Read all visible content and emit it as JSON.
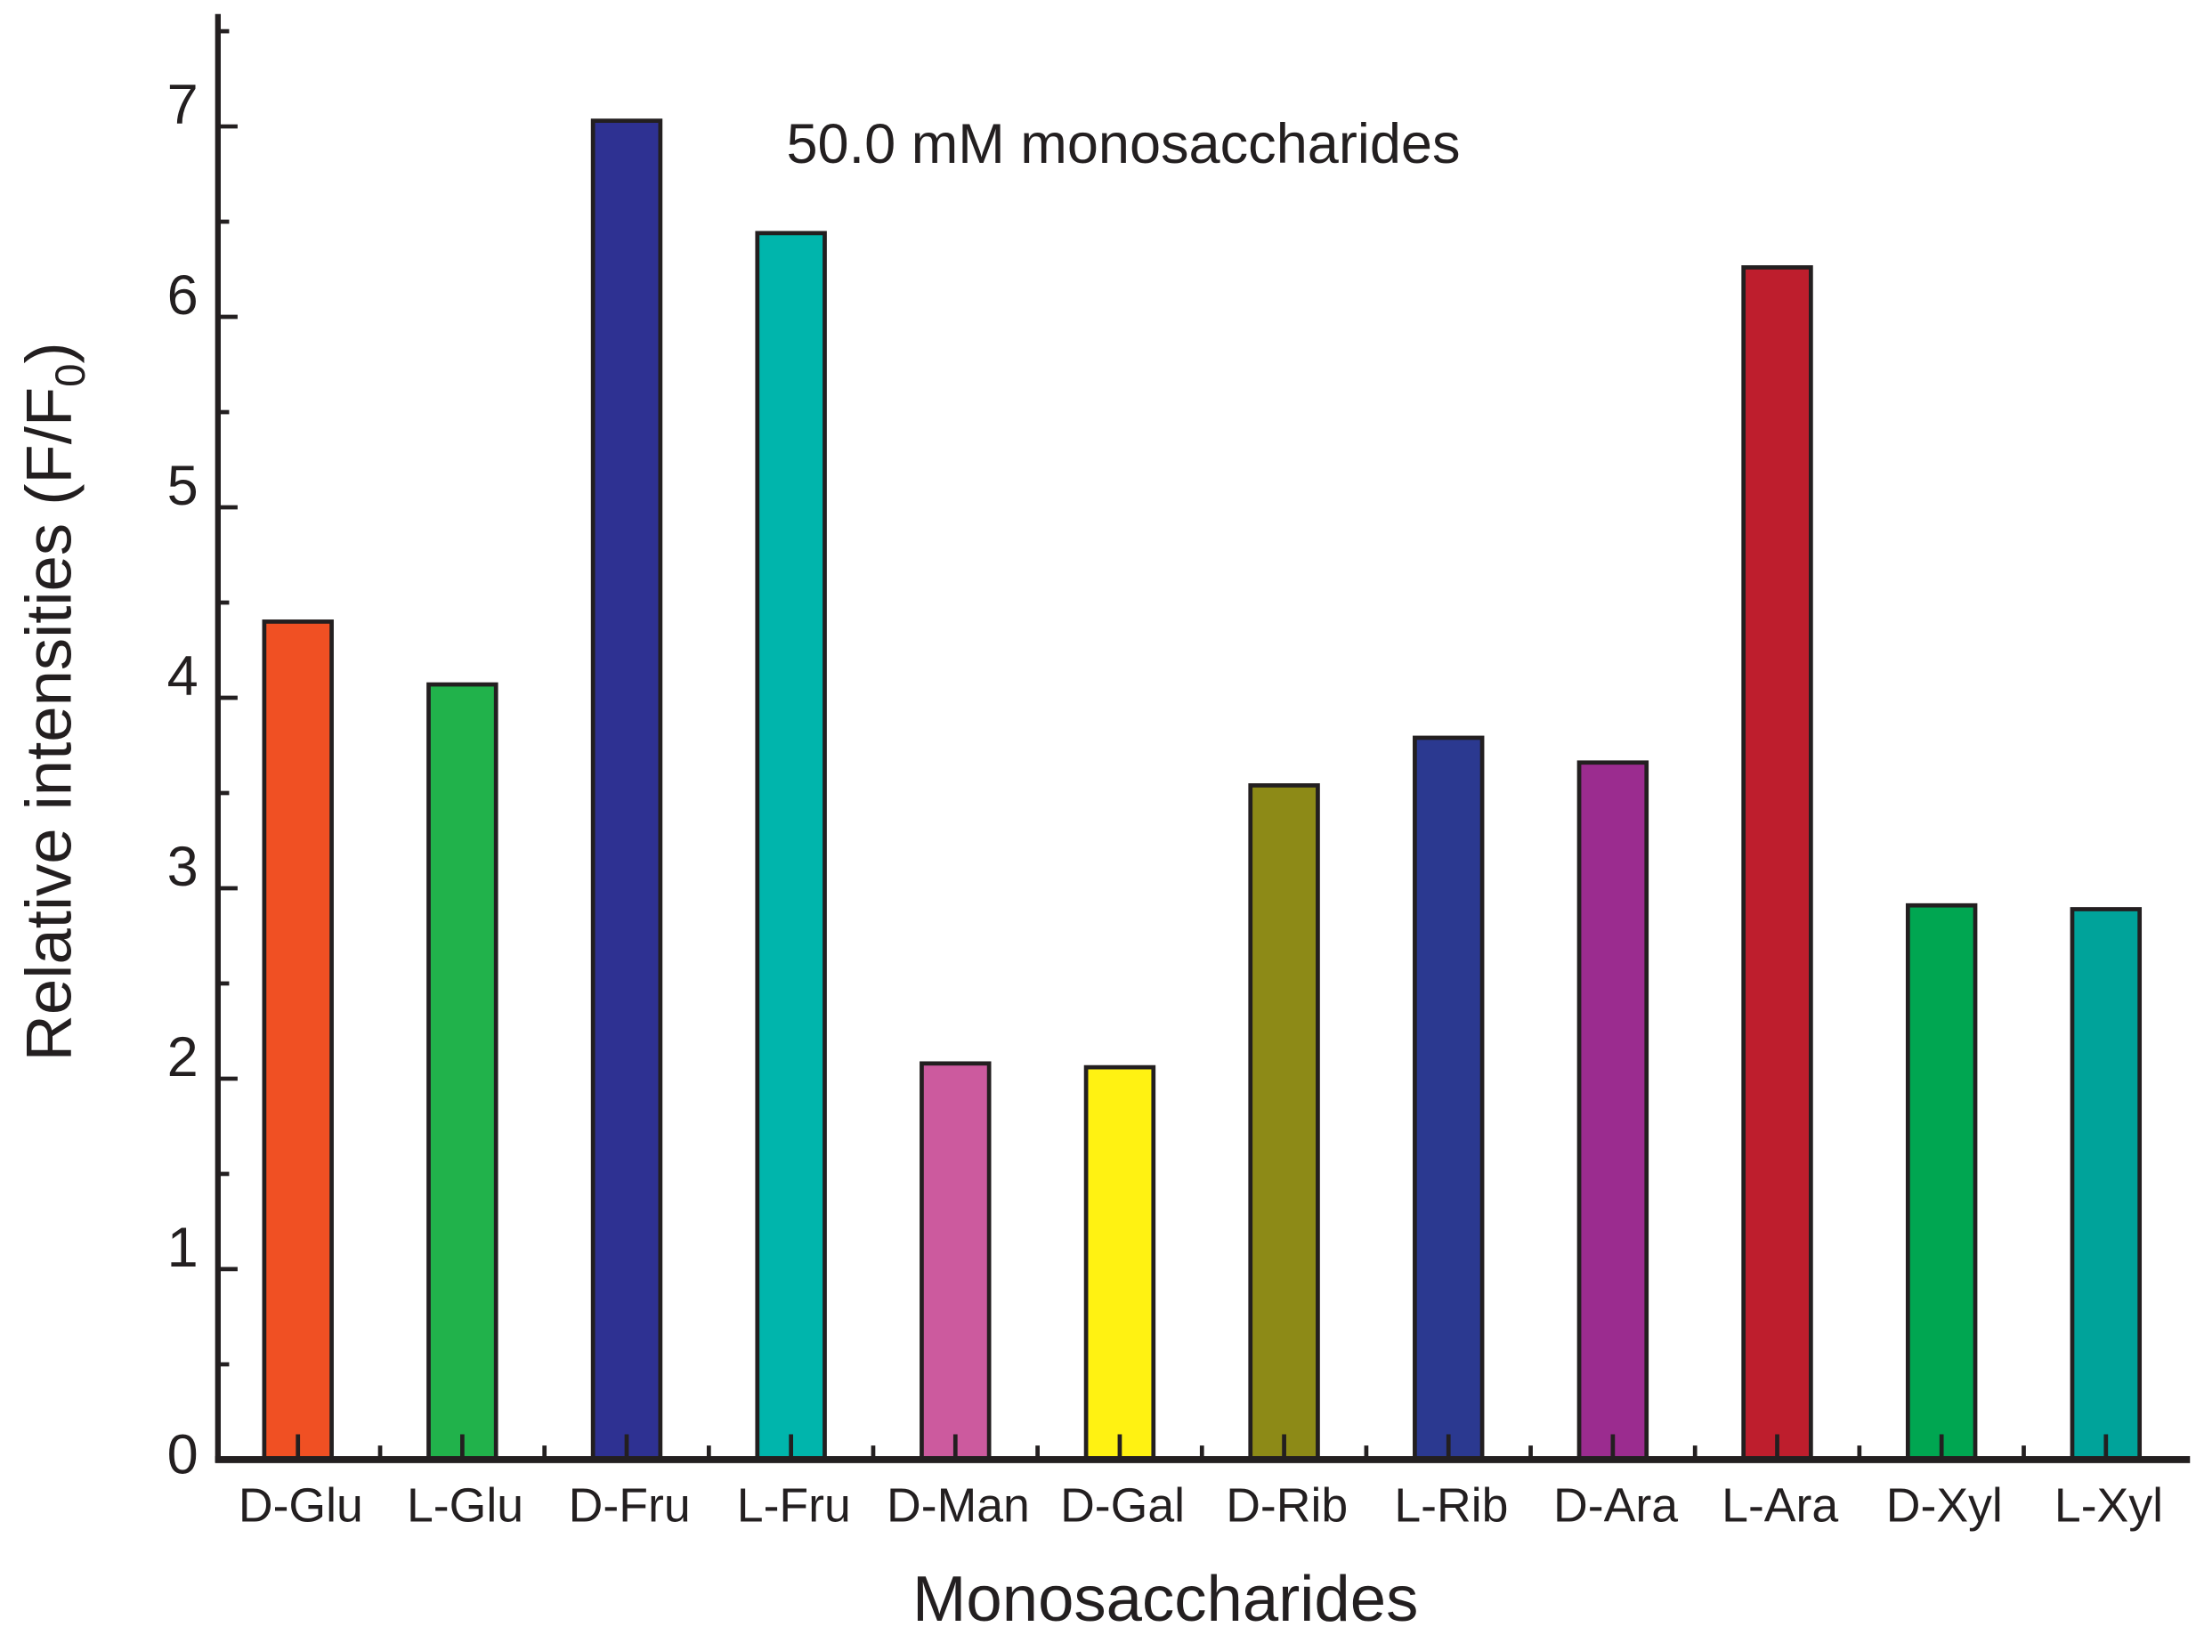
{
  "chart_data": {
    "type": "bar",
    "annotation": "50.0 mM monosaccharides",
    "xlabel": "Monosaccharides",
    "ylabel": "Relative intensities (F/F",
    "ylabel_sub": "0",
    "ylabel_close": ")",
    "ylim": [
      0,
      7.5
    ],
    "yticks": [
      0,
      1,
      2,
      3,
      4,
      5,
      6,
      7
    ],
    "grid": false,
    "categories": [
      "D-Glu",
      "L-Glu",
      "D-Fru",
      "L-Fru",
      "D-Man",
      "D-Gal",
      "D-Rib",
      "L-Rib",
      "D-Ara",
      "L-Ara",
      "D-Xyl",
      "L-Xyl"
    ],
    "values": [
      4.4,
      4.07,
      7.03,
      6.44,
      2.08,
      2.06,
      3.54,
      3.79,
      3.66,
      6.26,
      2.91,
      2.89
    ],
    "colors": [
      "#f05023",
      "#21b24b",
      "#2e3192",
      "#00b5ac",
      "#cc5a9e",
      "#fff212",
      "#8d8a17",
      "#2b3990",
      "#9b2c8f",
      "#be1e2d",
      "#00a651",
      "#00a39a"
    ]
  }
}
